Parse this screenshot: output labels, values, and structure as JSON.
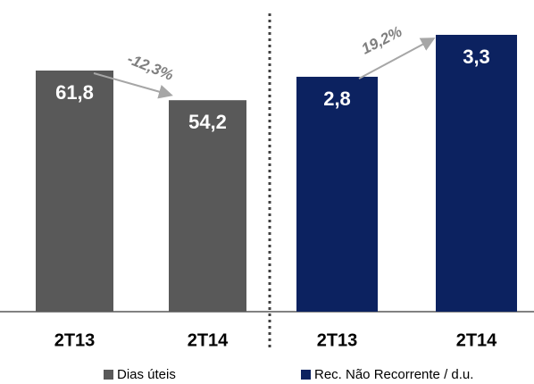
{
  "chart_data": [
    {
      "type": "bar",
      "categories": [
        "2T13",
        "2T14"
      ],
      "series": [
        {
          "name": "Dias úteis",
          "color": "#595959",
          "values": [
            61.8,
            54.2
          ],
          "value_labels": [
            "61,8",
            "54,2"
          ]
        }
      ],
      "annotations": [
        "-12,3%"
      ]
    },
    {
      "type": "bar",
      "categories": [
        "2T13",
        "2T14"
      ],
      "series": [
        {
          "name": "Rec. Não Recorrente / d.u.",
          "color": "#0c2260",
          "values": [
            2.8,
            3.3
          ],
          "value_labels": [
            "2,8",
            "3,3"
          ]
        }
      ],
      "annotations": [
        "19,2%"
      ]
    }
  ]
}
